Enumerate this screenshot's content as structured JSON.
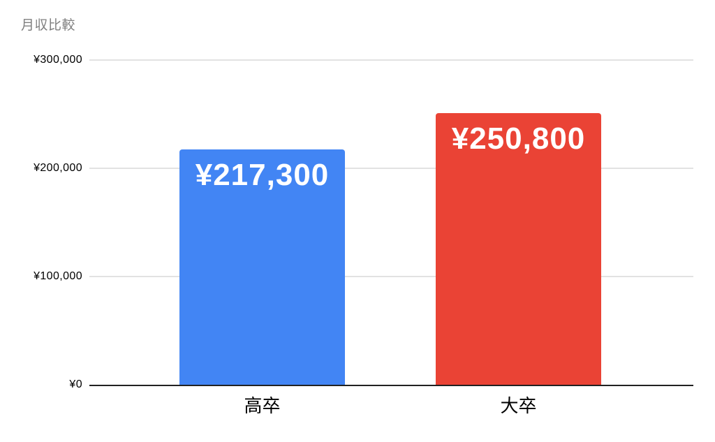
{
  "chart_data": {
    "type": "bar",
    "title": "月収比較",
    "categories": [
      "高卒",
      "大卒"
    ],
    "values": [
      217300,
      250800
    ],
    "value_labels": [
      "¥217,300",
      "¥250,800"
    ],
    "series": [
      {
        "name": "月収",
        "values": [
          217300,
          250800
        ]
      }
    ],
    "bar_colors": [
      "#4285f4",
      "#ea4335"
    ],
    "xlabel": "",
    "ylabel": "",
    "ylim": [
      0,
      300000
    ],
    "yticks": [
      0,
      100000,
      200000,
      300000
    ],
    "ytick_labels": [
      "¥0",
      "¥100,000",
      "¥200,000",
      "¥300,000"
    ],
    "grid": true,
    "legend_position": "none",
    "data_label_position": "inside-end"
  },
  "colors": {
    "background": "#ffffff",
    "title_text": "#7f7f7f",
    "grid_line": "#e2e2e2",
    "axis_line": "#212121",
    "tick_text": "#000000",
    "category_text": "#000000",
    "data_label_text": "#ffffff"
  }
}
